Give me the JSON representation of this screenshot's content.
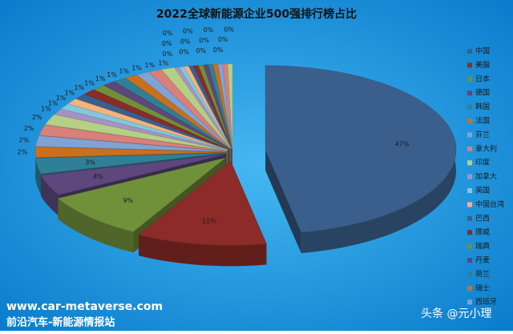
{
  "chart_data": {
    "type": "pie3d",
    "title": "2022全球新能源企业500强排行榜占比",
    "categories": [
      "中国",
      "美国",
      "日本",
      "德国",
      "韩国",
      "法国",
      "芬兰",
      "意大利",
      "印度",
      "加拿大",
      "英国",
      "中国台湾",
      "巴西",
      "挪威",
      "瑞典",
      "丹麦",
      "荷兰",
      "瑞士",
      "西班牙",
      null,
      null,
      null,
      null,
      null,
      null,
      null,
      null,
      null,
      null,
      null,
      null,
      null,
      null
    ],
    "values": [
      47,
      11,
      9,
      4,
      3,
      2,
      2,
      2,
      2,
      1.1,
      1.1,
      1.1,
      1.1,
      1.1,
      1.1,
      1.1,
      1.1,
      1.1,
      1.1,
      1.1,
      1.1,
      0.4,
      0.4,
      0.4,
      0.4,
      0.4,
      0.4,
      0.4,
      0.4,
      0.4,
      0.4,
      0.4,
      0.4
    ],
    "value_labels": [
      "47%",
      "11%",
      "9%",
      "4%",
      "3%",
      "2%",
      "2%",
      "2%",
      "2%",
      "1%",
      "1%",
      "1%",
      "1%",
      "1%",
      "1%",
      "1%",
      "1%",
      "1%",
      "1%",
      "1%",
      "1%",
      "0%",
      "0%",
      "0%",
      "0%",
      "0%",
      "0%",
      "0%",
      "0%",
      "0%",
      "0%",
      "0%",
      "0%"
    ],
    "palette": [
      "#3b5f8c",
      "#8c2b27",
      "#71903a",
      "#5d477d",
      "#2f8096",
      "#c9701f",
      "#7fa3d4",
      "#d9807c",
      "#b6cf86",
      "#a693c3",
      "#82c7da",
      "#f5b27c"
    ],
    "legend": "right"
  },
  "footer": {
    "site": "www.car-metaverse.com",
    "name": "前沿汽车-新能源情报站",
    "credit": "头条 @元小理"
  }
}
